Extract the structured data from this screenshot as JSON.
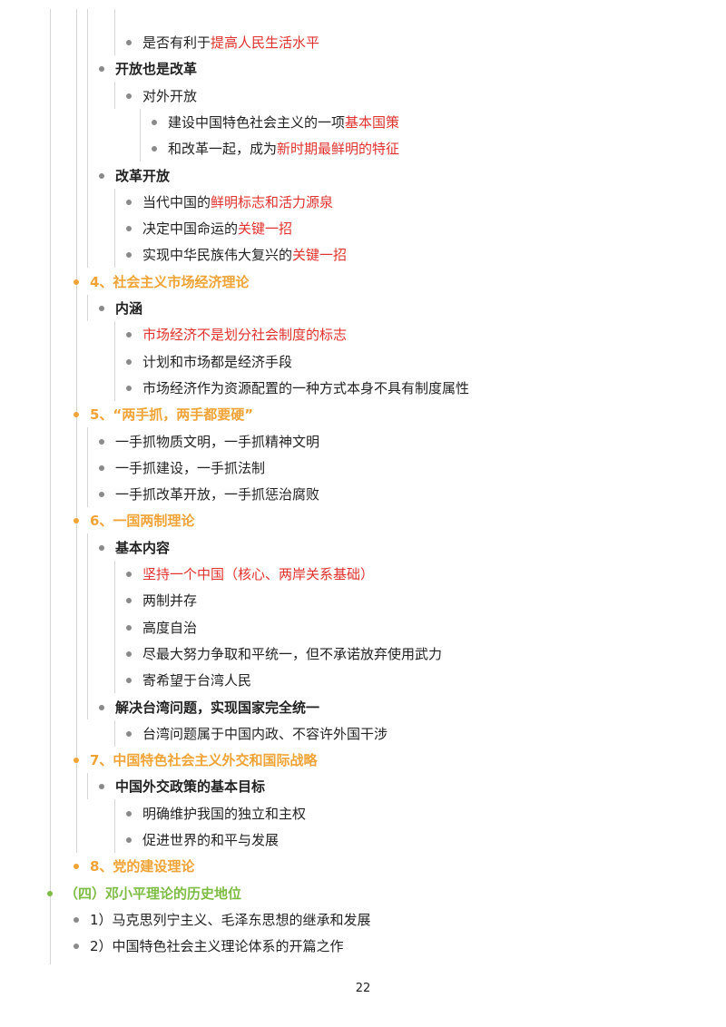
{
  "colors": {
    "text": "#222222",
    "highlight": "#e0322e",
    "heading_orange": "#f0a336",
    "heading_green": "#7ebc45",
    "bullet": "#8a8a8a"
  },
  "outline": [
    {
      "level": 3,
      "parts": [
        {
          "t": "是否有利于"
        },
        {
          "t": "提高人民生活水平",
          "style": "red"
        }
      ]
    },
    {
      "level": 2,
      "parts": [
        {
          "t": "开放也是改革",
          "style": "bold"
        }
      ]
    },
    {
      "level": 3,
      "parts": [
        {
          "t": "对外开放"
        }
      ]
    },
    {
      "level": 4,
      "parts": [
        {
          "t": "建设中国特色社会主义的一项"
        },
        {
          "t": "基本国策",
          "style": "red"
        }
      ]
    },
    {
      "level": 4,
      "parts": [
        {
          "t": "和改革一起，成为"
        },
        {
          "t": "新时期最鲜明的特征",
          "style": "red"
        }
      ]
    },
    {
      "level": 2,
      "parts": [
        {
          "t": "改革开放",
          "style": "bold"
        }
      ]
    },
    {
      "level": 3,
      "parts": [
        {
          "t": "当代中国的"
        },
        {
          "t": "鲜明标志和活力源泉",
          "style": "red"
        }
      ]
    },
    {
      "level": 3,
      "parts": [
        {
          "t": "决定中国命运的"
        },
        {
          "t": "关键一招",
          "style": "red"
        }
      ]
    },
    {
      "level": 3,
      "parts": [
        {
          "t": "实现中华民族伟大复兴的"
        },
        {
          "t": "关键一招",
          "style": "red"
        }
      ]
    },
    {
      "level": 1,
      "parts": [
        {
          "t": "4、社会主义市场经济理论",
          "style": "orange"
        }
      ]
    },
    {
      "level": 2,
      "parts": [
        {
          "t": "内涵",
          "style": "bold"
        }
      ]
    },
    {
      "level": 3,
      "parts": [
        {
          "t": "市场经济不是划分社会制度的标志",
          "style": "red"
        }
      ]
    },
    {
      "level": 3,
      "parts": [
        {
          "t": "计划和市场都是经济手段"
        }
      ]
    },
    {
      "level": 3,
      "parts": [
        {
          "t": "市场经济作为资源配置的一种方式本身不具有制度属性"
        }
      ]
    },
    {
      "level": 1,
      "parts": [
        {
          "t": "5、“两手抓，两手都要硬”",
          "style": "orange"
        }
      ]
    },
    {
      "level": 2,
      "parts": [
        {
          "t": "一手抓物质文明，一手抓精神文明"
        }
      ]
    },
    {
      "level": 2,
      "parts": [
        {
          "t": "一手抓建设，一手抓法制"
        }
      ]
    },
    {
      "level": 2,
      "parts": [
        {
          "t": "一手抓改革开放，一手抓惩治腐败"
        }
      ]
    },
    {
      "level": 1,
      "parts": [
        {
          "t": "6、一国两制理论",
          "style": "orange"
        }
      ]
    },
    {
      "level": 2,
      "parts": [
        {
          "t": "基本内容",
          "style": "bold"
        }
      ]
    },
    {
      "level": 3,
      "parts": [
        {
          "t": "坚持一个中国（核心、两岸关系基础）",
          "style": "red"
        }
      ]
    },
    {
      "level": 3,
      "parts": [
        {
          "t": "两制并存"
        }
      ]
    },
    {
      "level": 3,
      "parts": [
        {
          "t": "高度自治"
        }
      ]
    },
    {
      "level": 3,
      "parts": [
        {
          "t": "尽最大努力争取和平统一，但不承诺放弃使用武力"
        }
      ]
    },
    {
      "level": 3,
      "parts": [
        {
          "t": "寄希望于台湾人民"
        }
      ]
    },
    {
      "level": 2,
      "parts": [
        {
          "t": "解决台湾问题，实现国家完全统一",
          "style": "bold"
        }
      ]
    },
    {
      "level": 3,
      "parts": [
        {
          "t": "台湾问题属于中国内政、不容许外国干涉"
        }
      ]
    },
    {
      "level": 1,
      "parts": [
        {
          "t": "7、中国特色社会主义外交和国际战略",
          "style": "orange"
        }
      ]
    },
    {
      "level": 2,
      "parts": [
        {
          "t": "中国外交政策的基本目标",
          "style": "bold"
        }
      ]
    },
    {
      "level": 3,
      "parts": [
        {
          "t": "明确维护我国的独立和主权"
        }
      ]
    },
    {
      "level": 3,
      "parts": [
        {
          "t": "促进世界的和平与发展"
        }
      ]
    },
    {
      "level": 1,
      "parts": [
        {
          "t": "8、党的建设理论",
          "style": "orange"
        }
      ]
    },
    {
      "level": 0,
      "parts": [
        {
          "t": "（四）邓小平理论的历史地位",
          "style": "green"
        }
      ]
    },
    {
      "level": 1,
      "parts": [
        {
          "t": "1）马克思列宁主义、毛泽东思想的继承和发展"
        }
      ]
    },
    {
      "level": 1,
      "parts": [
        {
          "t": "2）中国特色社会主义理论体系的开篇之作"
        }
      ]
    }
  ],
  "page_number": "22"
}
